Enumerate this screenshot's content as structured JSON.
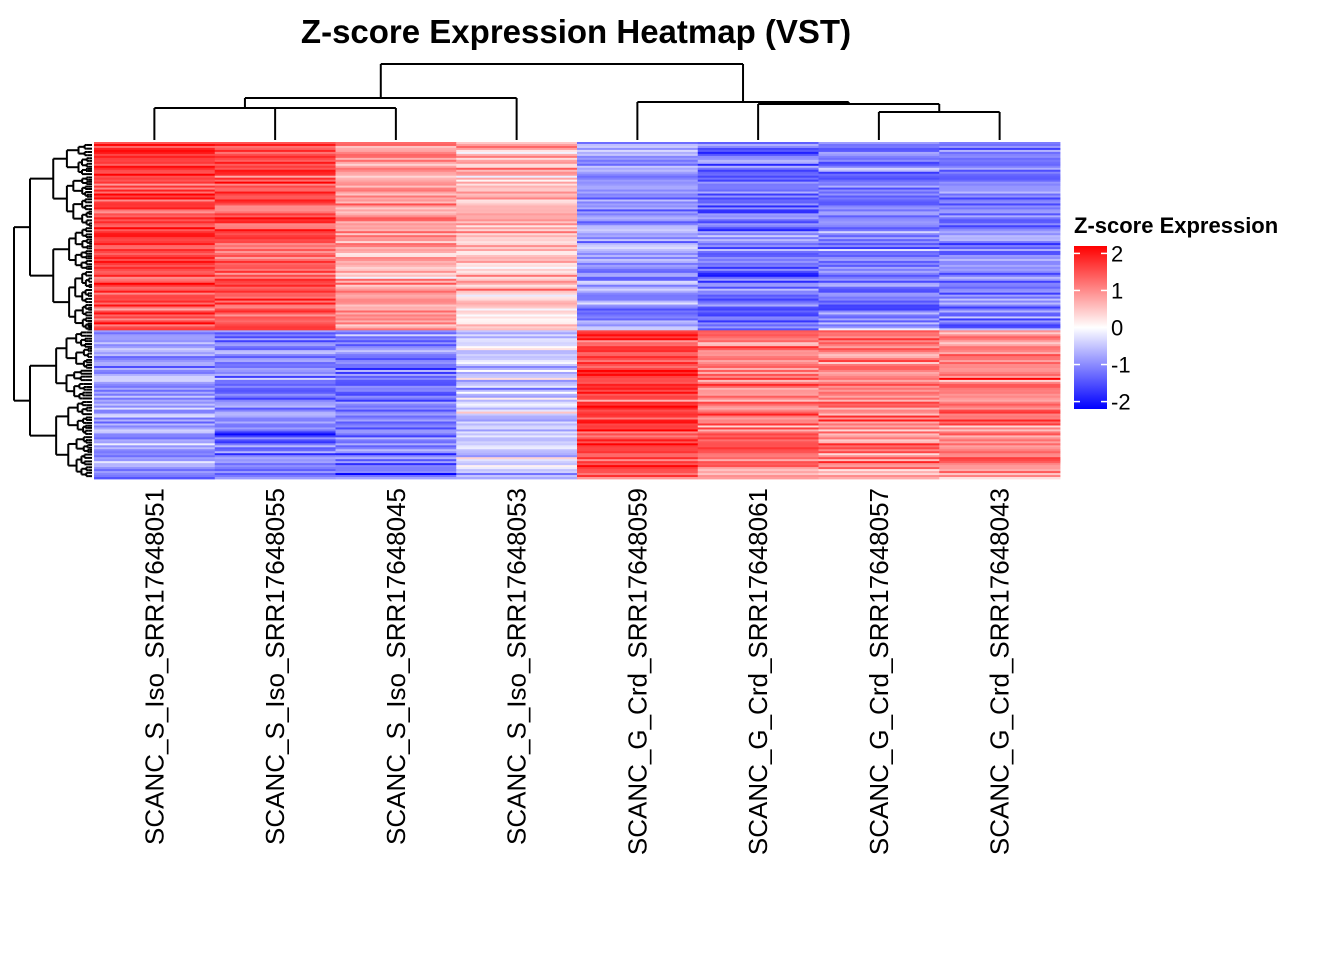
{
  "chart_data": {
    "type": "heatmap",
    "title": "Z-score Expression Heatmap (VST)",
    "columns": [
      "SCANC_S_Iso_SRR17648051",
      "SCANC_S_Iso_SRR17648055",
      "SCANC_S_Iso_SRR17648045",
      "SCANC_S_Iso_SRR17648053",
      "SCANC_G_Crd_SRR17648059",
      "SCANC_G_Crd_SRR17648061",
      "SCANC_G_Crd_SRR17648057",
      "SCANC_G_Crd_SRR17648043"
    ],
    "row_clusters": [
      {
        "name": "",
        "share": 0.56,
        "column_means": [
          1.6,
          1.5,
          0.9,
          0.6,
          -0.9,
          -1.3,
          -1.1,
          -1.1
        ]
      },
      {
        "name": "",
        "share": 0.44,
        "column_means": [
          -0.9,
          -1.1,
          -1.1,
          -0.4,
          1.6,
          1.2,
          1.1,
          1.2
        ]
      }
    ],
    "column_dendrogram": "SRR17648051, SRR17648055, SRR17648045, SRR17648053 cluster together; SRR17648059, SRR17648061, SRR17648057, SRR17648043 cluster together",
    "row_dendrogram": true,
    "legend": {
      "title": "Z-score Expression",
      "ticks": [
        "2",
        "1",
        "0",
        "-1",
        "-2"
      ],
      "tick_values": [
        2,
        1,
        0,
        -1,
        -2
      ],
      "range": [
        -2.2,
        2.2
      ],
      "colors": {
        "high": "#ff0000",
        "mid": "#ffffff",
        "low": "#0000ff"
      },
      "placement": "right"
    }
  }
}
